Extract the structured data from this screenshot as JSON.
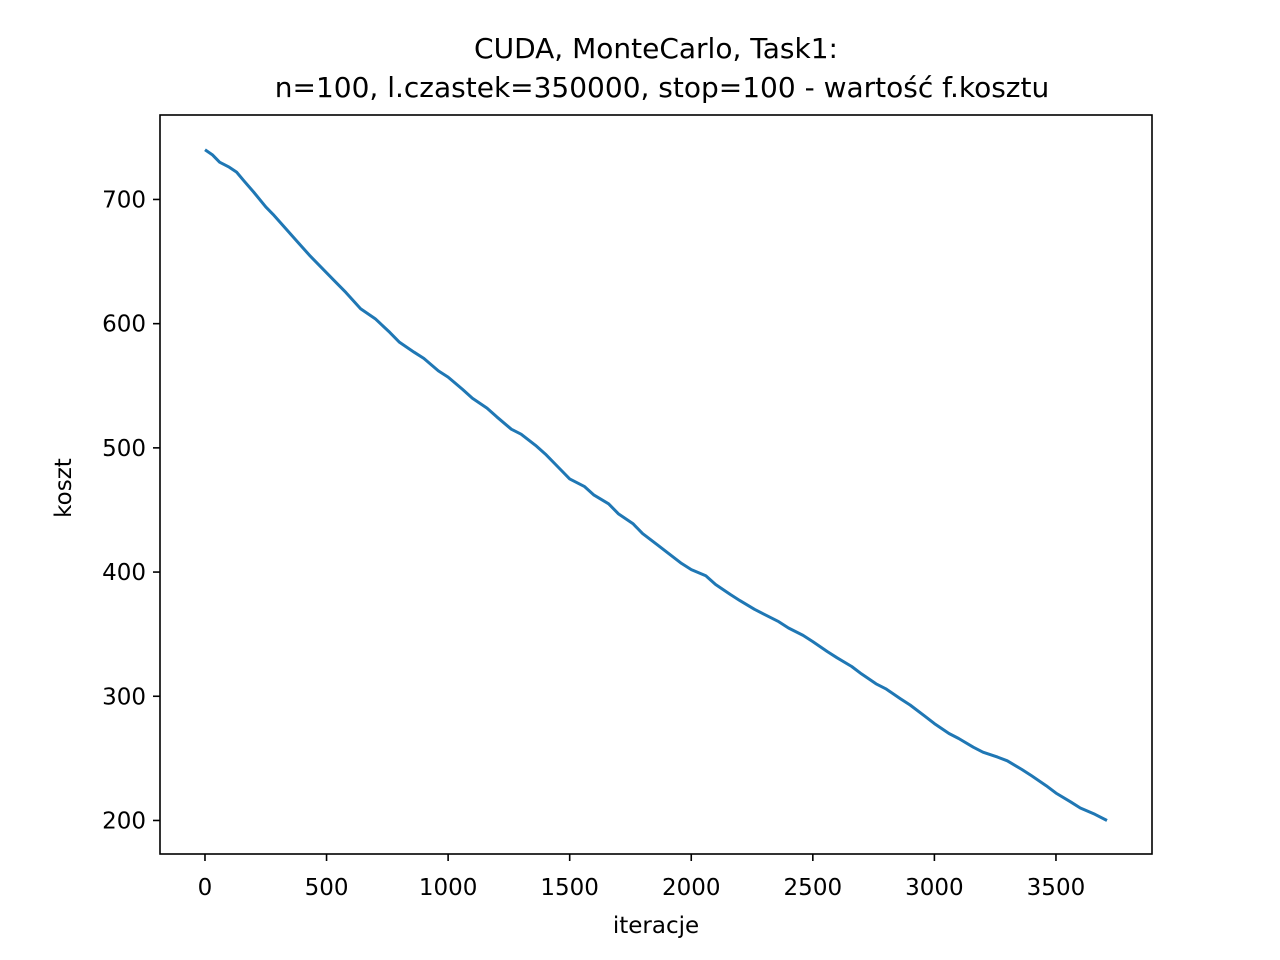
{
  "chart_data": {
    "type": "line",
    "title_line1": "CUDA, MonteCarlo, Task1:",
    "title_line2": "n=100, l.czastek=350000, stop=100 - wartość f.kosztu",
    "xlabel": "iteracje",
    "ylabel": "koszt",
    "xlim": [
      -185,
      3895
    ],
    "ylim": [
      173,
      768
    ],
    "x_ticks": [
      0,
      500,
      1000,
      1500,
      2000,
      2500,
      3000,
      3500
    ],
    "y_ticks": [
      200,
      300,
      400,
      500,
      600,
      700
    ],
    "grid": false,
    "series": [
      {
        "color": "#1f77b4",
        "x": [
          0,
          30,
          60,
          100,
          130,
          160,
          200,
          250,
          280,
          330,
          380,
          430,
          480,
          530,
          580,
          640,
          700,
          760,
          800,
          860,
          900,
          960,
          1000,
          1060,
          1100,
          1160,
          1200,
          1260,
          1300,
          1360,
          1400,
          1460,
          1500,
          1560,
          1600,
          1660,
          1700,
          1760,
          1800,
          1860,
          1900,
          1960,
          2000,
          2060,
          2100,
          2160,
          2200,
          2260,
          2300,
          2360,
          2400,
          2460,
          2500,
          2560,
          2600,
          2660,
          2700,
          2760,
          2800,
          2860,
          2900,
          2960,
          3000,
          3060,
          3100,
          3160,
          3200,
          3260,
          3300,
          3360,
          3400,
          3460,
          3500,
          3560,
          3600,
          3660,
          3710
        ],
        "y": [
          740,
          736,
          730,
          726,
          722,
          715,
          706,
          694,
          688,
          677,
          666,
          655,
          645,
          635,
          625,
          612,
          604,
          593,
          585,
          577,
          572,
          562,
          557,
          547,
          540,
          532,
          525,
          515,
          511,
          502,
          495,
          483,
          475,
          469,
          462,
          455,
          447,
          439,
          431,
          422,
          416,
          407,
          402,
          397,
          390,
          382,
          377,
          370,
          366,
          360,
          355,
          349,
          344,
          336,
          331,
          324,
          318,
          310,
          306,
          298,
          293,
          284,
          278,
          270,
          266,
          259,
          255,
          251,
          248,
          241,
          236,
          228,
          222,
          215,
          210,
          205,
          200
        ]
      }
    ]
  }
}
